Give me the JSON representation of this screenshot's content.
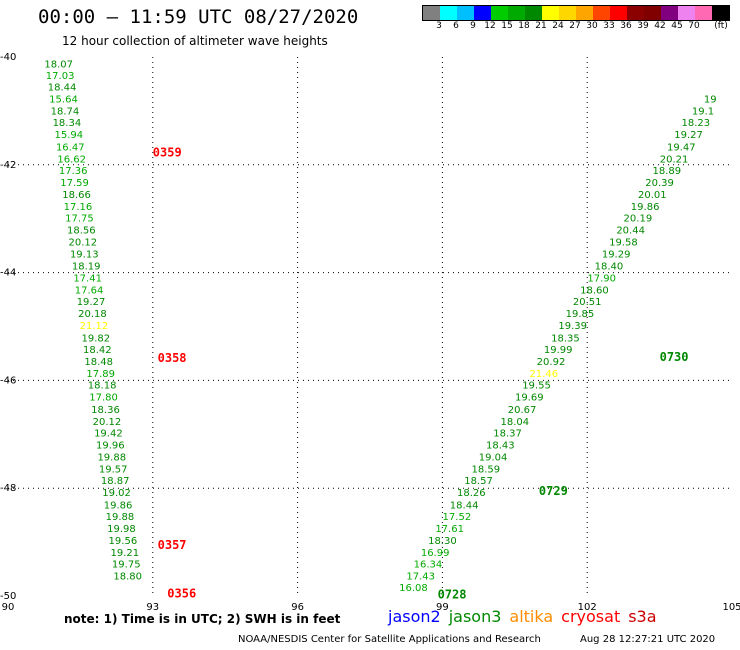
{
  "header": {
    "title": "00:00 – 11:59 UTC 08/27/2020",
    "subtitle": "12 hour collection of altimeter wave heights"
  },
  "colorbar": {
    "unit": "(ft)",
    "colors": [
      "#808080",
      "#00ffff",
      "#00bfff",
      "#0000ff",
      "#00cc00",
      "#00aa00",
      "#008800",
      "#ffff00",
      "#ffd700",
      "#ffa500",
      "#ff4500",
      "#ff0000",
      "#8b0000",
      "#800000",
      "#800080",
      "#ee82ee",
      "#ff69b4",
      "#000000"
    ],
    "labels": [
      "3",
      "6",
      "9",
      "12",
      "15",
      "18",
      "21",
      "24",
      "27",
      "30",
      "33",
      "36",
      "39",
      "42",
      "45",
      "70"
    ]
  },
  "footer": {
    "note": "note: 1) Time is in UTC; 2) SWH is in feet",
    "satellites": [
      {
        "name": "jason2",
        "color": "#0000ff"
      },
      {
        "name": "jason3",
        "color": "#008800"
      },
      {
        "name": "altika",
        "color": "#ff8c00"
      },
      {
        "name": "cryosat",
        "color": "#ff0000"
      },
      {
        "name": "s3a",
        "color": "#cc0000"
      }
    ],
    "credit": "NOAA/NESDIS Center for Satellite Applications and Research",
    "timestamp": "Aug 28 12:27:21 UTC 2020"
  },
  "chart_data": {
    "type": "scatter",
    "xlim": [
      90,
      105
    ],
    "ylim": [
      -50,
      -40
    ],
    "xticks": [
      "90",
      "93",
      "96",
      "99",
      "102",
      "105"
    ],
    "yticks": [
      "-40",
      "-42",
      "-44",
      "-46",
      "-48",
      "-50"
    ],
    "grid": true,
    "pass_labels": [
      {
        "text": "0359",
        "x": 93.0,
        "y": -41.77,
        "color": "#ff0000"
      },
      {
        "text": "0358",
        "x": 93.1,
        "y": -45.58,
        "color": "#ff0000"
      },
      {
        "text": "0357",
        "x": 93.1,
        "y": -49.05,
        "color": "#ff0000"
      },
      {
        "text": "0356",
        "x": 93.3,
        "y": -49.95,
        "color": "#ff0000"
      },
      {
        "text": "0730",
        "x": 103.5,
        "y": -45.57,
        "color": "#008800"
      },
      {
        "text": "0729",
        "x": 101.0,
        "y": -48.05,
        "color": "#008800"
      },
      {
        "text": "0728",
        "x": 98.9,
        "y": -49.97,
        "color": "#008800"
      }
    ],
    "series": [
      {
        "points": [
          {
            "label": "18.07",
            "x": 91.05,
            "y": -40.12,
            "color": "#008800"
          },
          {
            "label": "17.03",
            "x": 91.08,
            "y": -40.33,
            "color": "#00aa00"
          },
          {
            "label": "18.44",
            "x": 91.12,
            "y": -40.55,
            "color": "#008800"
          },
          {
            "label": "15.64",
            "x": 91.15,
            "y": -40.77,
            "color": "#00aa00"
          },
          {
            "label": "18.74",
            "x": 91.18,
            "y": -40.99,
            "color": "#008800"
          },
          {
            "label": "18.34",
            "x": 91.22,
            "y": -41.21,
            "color": "#008800"
          },
          {
            "label": "15.94",
            "x": 91.26,
            "y": -41.43,
            "color": "#00aa00"
          },
          {
            "label": "16.47",
            "x": 91.29,
            "y": -41.66,
            "color": "#00aa00"
          },
          {
            "label": "16.62",
            "x": 91.32,
            "y": -41.88,
            "color": "#00aa00"
          },
          {
            "label": "17.36",
            "x": 91.35,
            "y": -42.1,
            "color": "#00aa00"
          },
          {
            "label": "17.59",
            "x": 91.38,
            "y": -42.32,
            "color": "#00aa00"
          },
          {
            "label": "18.66",
            "x": 91.42,
            "y": -42.54,
            "color": "#008800"
          },
          {
            "label": "17.16",
            "x": 91.45,
            "y": -42.76,
            "color": "#00aa00"
          },
          {
            "label": "17.75",
            "x": 91.48,
            "y": -42.98,
            "color": "#00aa00"
          },
          {
            "label": "18.56",
            "x": 91.52,
            "y": -43.2,
            "color": "#008800"
          },
          {
            "label": "20.12",
            "x": 91.55,
            "y": -43.42,
            "color": "#008800"
          },
          {
            "label": "19.13",
            "x": 91.58,
            "y": -43.65,
            "color": "#008800"
          },
          {
            "label": "18.19",
            "x": 91.62,
            "y": -43.87,
            "color": "#008800"
          },
          {
            "label": "17.41",
            "x": 91.65,
            "y": -44.09,
            "color": "#00aa00"
          },
          {
            "label": "17.64",
            "x": 91.68,
            "y": -44.31,
            "color": "#00aa00"
          },
          {
            "label": "19.27",
            "x": 91.72,
            "y": -44.53,
            "color": "#008800"
          },
          {
            "label": "20.18",
            "x": 91.75,
            "y": -44.75,
            "color": "#008800"
          },
          {
            "label": "21.12",
            "x": 91.78,
            "y": -44.97,
            "color": "#ffff00"
          },
          {
            "label": "19.82",
            "x": 91.82,
            "y": -45.2,
            "color": "#008800"
          },
          {
            "label": "18.42",
            "x": 91.85,
            "y": -45.42,
            "color": "#008800"
          },
          {
            "label": "18.48",
            "x": 91.88,
            "y": -45.64,
            "color": "#008800"
          },
          {
            "label": "17.89",
            "x": 91.92,
            "y": -45.86,
            "color": "#00aa00"
          },
          {
            "label": "18.18",
            "x": 91.95,
            "y": -46.08,
            "color": "#008800"
          },
          {
            "label": "17.80",
            "x": 91.98,
            "y": -46.3,
            "color": "#00aa00"
          },
          {
            "label": "18.36",
            "x": 92.02,
            "y": -46.53,
            "color": "#008800"
          },
          {
            "label": "20.12",
            "x": 92.05,
            "y": -46.75,
            "color": "#008800"
          },
          {
            "label": "19.42",
            "x": 92.08,
            "y": -46.97,
            "color": "#008800"
          },
          {
            "label": "19.96",
            "x": 92.12,
            "y": -47.19,
            "color": "#008800"
          },
          {
            "label": "19.88",
            "x": 92.15,
            "y": -47.41,
            "color": "#008800"
          },
          {
            "label": "19.57",
            "x": 92.18,
            "y": -47.63,
            "color": "#008800"
          },
          {
            "label": "18.87",
            "x": 92.22,
            "y": -47.85,
            "color": "#008800"
          },
          {
            "label": "19.02",
            "x": 92.25,
            "y": -48.07,
            "color": "#008800"
          },
          {
            "label": "19.86",
            "x": 92.28,
            "y": -48.3,
            "color": "#008800"
          },
          {
            "label": "19.88",
            "x": 92.32,
            "y": -48.52,
            "color": "#008800"
          },
          {
            "label": "19.98",
            "x": 92.35,
            "y": -48.74,
            "color": "#008800"
          },
          {
            "label": "19.56",
            "x": 92.38,
            "y": -48.96,
            "color": "#008800"
          },
          {
            "label": "19.21",
            "x": 92.42,
            "y": -49.18,
            "color": "#008800"
          },
          {
            "label": "19.75",
            "x": 92.45,
            "y": -49.4,
            "color": "#008800"
          },
          {
            "label": "18.80",
            "x": 92.48,
            "y": -49.62,
            "color": "#008800"
          }
        ]
      },
      {
        "points": [
          {
            "label": "16.08",
            "x": 98.4,
            "y": -49.83,
            "color": "#00aa00"
          },
          {
            "label": "17.43",
            "x": 98.55,
            "y": -49.62,
            "color": "#00aa00"
          },
          {
            "label": "16.34",
            "x": 98.7,
            "y": -49.4,
            "color": "#00aa00"
          },
          {
            "label": "16.99",
            "x": 98.85,
            "y": -49.18,
            "color": "#00aa00"
          },
          {
            "label": "18.30",
            "x": 99.0,
            "y": -48.96,
            "color": "#008800"
          },
          {
            "label": "17.61",
            "x": 99.15,
            "y": -48.74,
            "color": "#00aa00"
          },
          {
            "label": "17.52",
            "x": 99.3,
            "y": -48.52,
            "color": "#00aa00"
          },
          {
            "label": "18.44",
            "x": 99.45,
            "y": -48.3,
            "color": "#008800"
          },
          {
            "label": "18.26",
            "x": 99.6,
            "y": -48.07,
            "color": "#008800"
          },
          {
            "label": "18.57",
            "x": 99.75,
            "y": -47.85,
            "color": "#008800"
          },
          {
            "label": "18.59",
            "x": 99.9,
            "y": -47.63,
            "color": "#008800"
          },
          {
            "label": "19.04",
            "x": 100.05,
            "y": -47.41,
            "color": "#008800"
          },
          {
            "label": "18.43",
            "x": 100.2,
            "y": -47.19,
            "color": "#008800"
          },
          {
            "label": "18.37",
            "x": 100.35,
            "y": -46.97,
            "color": "#008800"
          },
          {
            "label": "18.04",
            "x": 100.5,
            "y": -46.75,
            "color": "#008800"
          },
          {
            "label": "20.67",
            "x": 100.65,
            "y": -46.53,
            "color": "#008800"
          },
          {
            "label": "19.69",
            "x": 100.8,
            "y": -46.3,
            "color": "#008800"
          },
          {
            "label": "19.55",
            "x": 100.95,
            "y": -46.08,
            "color": "#008800"
          },
          {
            "label": "21.46",
            "x": 101.1,
            "y": -45.86,
            "color": "#ffff00"
          },
          {
            "label": "20.92",
            "x": 101.25,
            "y": -45.64,
            "color": "#008800"
          },
          {
            "label": "19.99",
            "x": 101.4,
            "y": -45.42,
            "color": "#008800"
          },
          {
            "label": "18.35",
            "x": 101.55,
            "y": -45.2,
            "color": "#008800"
          },
          {
            "label": "19.39",
            "x": 101.7,
            "y": -44.97,
            "color": "#008800"
          },
          {
            "label": "19.85",
            "x": 101.85,
            "y": -44.75,
            "color": "#008800"
          },
          {
            "label": "20.51",
            "x": 102.0,
            "y": -44.53,
            "color": "#008800"
          },
          {
            "label": "18.60",
            "x": 102.15,
            "y": -44.31,
            "color": "#008800"
          },
          {
            "label": "17.90",
            "x": 102.3,
            "y": -44.09,
            "color": "#00aa00"
          },
          {
            "label": "18.40",
            "x": 102.45,
            "y": -43.87,
            "color": "#008800"
          },
          {
            "label": "19.29",
            "x": 102.6,
            "y": -43.65,
            "color": "#008800"
          },
          {
            "label": "19.58",
            "x": 102.75,
            "y": -43.42,
            "color": "#008800"
          },
          {
            "label": "20.44",
            "x": 102.9,
            "y": -43.2,
            "color": "#008800"
          },
          {
            "label": "20.19",
            "x": 103.05,
            "y": -42.98,
            "color": "#008800"
          },
          {
            "label": "19.86",
            "x": 103.2,
            "y": -42.76,
            "color": "#008800"
          },
          {
            "label": "20.01",
            "x": 103.35,
            "y": -42.54,
            "color": "#008800"
          },
          {
            "label": "20.39",
            "x": 103.5,
            "y": -42.32,
            "color": "#008800"
          },
          {
            "label": "18.89",
            "x": 103.65,
            "y": -42.1,
            "color": "#008800"
          },
          {
            "label": "20.21",
            "x": 103.8,
            "y": -41.88,
            "color": "#008800"
          },
          {
            "label": "19.47",
            "x": 103.95,
            "y": -41.66,
            "color": "#008800"
          },
          {
            "label": "19.27",
            "x": 104.1,
            "y": -41.43,
            "color": "#008800"
          },
          {
            "label": "18.23",
            "x": 104.25,
            "y": -41.21,
            "color": "#008800"
          },
          {
            "label": "19.1",
            "x": 104.4,
            "y": -40.99,
            "color": "#008800"
          },
          {
            "label": "19",
            "x": 104.55,
            "y": -40.77,
            "color": "#008800"
          }
        ]
      }
    ]
  }
}
